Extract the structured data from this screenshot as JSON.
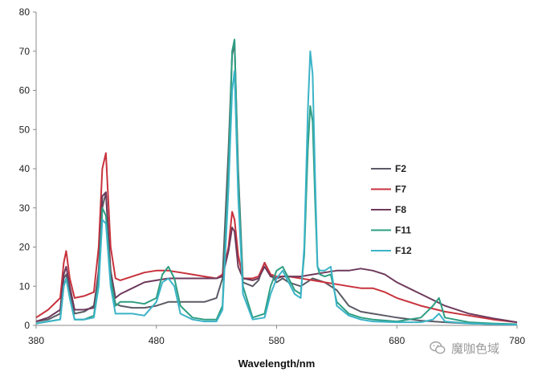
{
  "chart_data": {
    "type": "line",
    "title": "",
    "xlabel": "Wavelength/nm",
    "ylabel": "",
    "xlim": [
      380,
      780
    ],
    "ylim": [
      0,
      80
    ],
    "xticks": [
      "380",
      "480",
      "580",
      "680",
      "780"
    ],
    "yticks": [
      "0",
      "10",
      "20",
      "30",
      "40",
      "50",
      "60",
      "70",
      "80"
    ],
    "grid": false,
    "legend_position": "right",
    "series": [
      {
        "name": "F2",
        "color": "#5b5b66",
        "x": [
          380,
          390,
          400,
          403,
          405,
          408,
          412,
          420,
          428,
          432,
          435,
          438,
          442,
          446,
          450,
          460,
          470,
          480,
          490,
          500,
          510,
          520,
          530,
          535,
          540,
          543,
          545,
          548,
          552,
          560,
          565,
          570,
          575,
          580,
          585,
          590,
          600,
          610,
          620,
          630,
          640,
          650,
          660,
          670,
          680,
          700,
          720,
          740,
          760,
          780
        ],
        "y": [
          1,
          1.5,
          3,
          12,
          13,
          9,
          3,
          3.5,
          5,
          13,
          30,
          34,
          12,
          5.5,
          5,
          4.5,
          4.5,
          5,
          6,
          6,
          6,
          6,
          7,
          12,
          45,
          69,
          72,
          40,
          11,
          10,
          11.5,
          16,
          13,
          11,
          12,
          11,
          10,
          12,
          11,
          9,
          5,
          3.5,
          3,
          2.5,
          2,
          1.2,
          0.8,
          0.5,
          0.3,
          0.2
        ]
      },
      {
        "name": "F7",
        "color": "#c8323c",
        "x": [
          380,
          390,
          400,
          403,
          405,
          408,
          412,
          420,
          428,
          432,
          435,
          438,
          442,
          446,
          450,
          460,
          470,
          480,
          490,
          500,
          510,
          520,
          530,
          535,
          540,
          543,
          545,
          548,
          552,
          560,
          565,
          570,
          575,
          580,
          585,
          590,
          600,
          610,
          620,
          630,
          640,
          650,
          660,
          670,
          680,
          700,
          720,
          740,
          760,
          780
        ],
        "y": [
          2,
          4,
          7,
          16,
          19,
          12,
          7,
          7.5,
          8.5,
          20,
          40,
          44,
          20,
          12,
          11.5,
          12.5,
          13.5,
          14,
          14,
          13.5,
          13,
          12.5,
          12,
          13,
          20,
          29,
          27,
          18,
          12,
          12,
          12.5,
          16,
          13,
          12.5,
          12.5,
          12.5,
          12,
          11.5,
          11,
          10.5,
          10,
          9.5,
          9.5,
          8.5,
          7,
          5,
          3.5,
          2.5,
          1.5,
          0.8
        ]
      },
      {
        "name": "F8",
        "color": "#6e3a5c",
        "x": [
          380,
          390,
          400,
          403,
          405,
          408,
          412,
          420,
          428,
          432,
          435,
          438,
          442,
          446,
          450,
          460,
          470,
          480,
          490,
          500,
          510,
          520,
          530,
          535,
          540,
          543,
          545,
          548,
          552,
          560,
          565,
          570,
          575,
          580,
          585,
          590,
          600,
          610,
          620,
          630,
          640,
          650,
          660,
          670,
          680,
          700,
          720,
          740,
          760,
          780
        ],
        "y": [
          1,
          2,
          4,
          13,
          15,
          10,
          4,
          4,
          4.5,
          14,
          33,
          34,
          14,
          7,
          8,
          9.5,
          11,
          11.5,
          12,
          12,
          12,
          12,
          12,
          12.5,
          19,
          25,
          24,
          15,
          12,
          11.5,
          12,
          15,
          12.5,
          12,
          12.5,
          12.5,
          12.5,
          13,
          13.5,
          14,
          14,
          14.5,
          14,
          13,
          11,
          8,
          5,
          3,
          1.8,
          0.8
        ]
      },
      {
        "name": "F11",
        "color": "#2e9e82",
        "x": [
          380,
          390,
          400,
          403,
          405,
          408,
          412,
          420,
          428,
          432,
          435,
          438,
          442,
          446,
          450,
          460,
          470,
          480,
          485,
          490,
          495,
          500,
          510,
          520,
          530,
          535,
          540,
          543,
          545,
          548,
          552,
          560,
          570,
          575,
          580,
          585,
          590,
          595,
          600,
          603,
          606,
          608,
          610,
          612,
          614,
          616,
          620,
          625,
          630,
          640,
          650,
          660,
          680,
          700,
          710,
          715,
          720,
          740,
          760,
          780
        ],
        "y": [
          0.5,
          1,
          1.5,
          10,
          12,
          7,
          1.5,
          1.5,
          2.5,
          12,
          30,
          28,
          12,
          5,
          6,
          6,
          5.5,
          7,
          13,
          15,
          12,
          5,
          2,
          1.5,
          1.5,
          5,
          40,
          70,
          73,
          38,
          10,
          2,
          3,
          10,
          14,
          15,
          12,
          9,
          8,
          18,
          45,
          56,
          52,
          32,
          15,
          13,
          12.5,
          13,
          6,
          3,
          2,
          1.5,
          1,
          2,
          5,
          7,
          2,
          0.8,
          0.5,
          0.3
        ]
      },
      {
        "name": "F12",
        "color": "#3bb3c7",
        "x": [
          380,
          390,
          400,
          403,
          405,
          408,
          412,
          420,
          428,
          432,
          435,
          438,
          442,
          446,
          450,
          460,
          470,
          480,
          485,
          490,
          495,
          500,
          510,
          520,
          530,
          535,
          540,
          543,
          545,
          548,
          552,
          560,
          570,
          575,
          580,
          585,
          590,
          595,
          600,
          603,
          606,
          608,
          610,
          612,
          614,
          616,
          620,
          625,
          630,
          640,
          650,
          660,
          680,
          700,
          710,
          715,
          720,
          740,
          760,
          780
        ],
        "y": [
          0.5,
          1,
          1.5,
          10,
          12,
          7,
          1.5,
          1.5,
          2,
          10,
          27,
          26,
          10,
          3,
          3,
          3,
          2.5,
          6,
          11,
          12,
          10,
          3,
          1.5,
          1,
          1,
          4,
          35,
          60,
          65,
          33,
          8,
          1.5,
          2,
          8,
          12,
          14,
          11,
          8,
          7,
          20,
          55,
          70,
          64,
          38,
          15,
          14,
          14,
          15,
          5,
          2.5,
          1.5,
          1,
          0.8,
          0.8,
          1.5,
          3,
          1,
          0.5,
          0.3,
          0.2
        ]
      }
    ]
  },
  "watermark": {
    "text": "魔咖色域",
    "icon": "wechat-bubble-icon"
  }
}
